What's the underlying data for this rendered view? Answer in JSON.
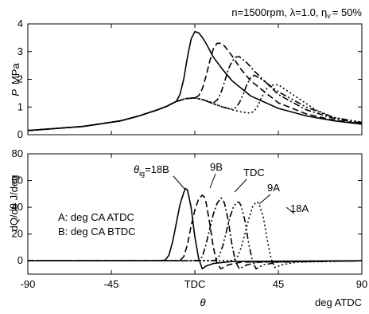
{
  "chart_data": [
    {
      "type": "line",
      "panel": "top",
      "condition_text": "n=1500rpm, λ=1.0, η",
      "condition_sub": "v",
      "condition_tail": "= 50%",
      "ylabel_sym": "P",
      "ylabel_unit": "MPa",
      "ylim": [
        0,
        4
      ],
      "yticks": [
        "0",
        "1",
        "2",
        "3",
        "4"
      ],
      "xlim": [
        -90,
        90
      ],
      "series": [
        {
          "style": "solid",
          "x": [
            -90,
            -60,
            -40,
            -30,
            -20,
            -15,
            -10,
            -8,
            -6,
            -4,
            -2,
            0,
            2,
            4,
            6,
            8,
            10,
            15,
            20,
            30,
            45,
            60,
            75,
            90
          ],
          "y": [
            0.15,
            0.3,
            0.5,
            0.68,
            0.9,
            1.03,
            1.2,
            1.45,
            2.0,
            2.8,
            3.45,
            3.72,
            3.68,
            3.52,
            3.3,
            3.05,
            2.8,
            2.35,
            1.95,
            1.4,
            0.95,
            0.68,
            0.5,
            0.38
          ]
        },
        {
          "style": "dash",
          "x": [
            -90,
            -60,
            -40,
            -30,
            -20,
            -15,
            -10,
            -5,
            0,
            2,
            4,
            6,
            8,
            10,
            12,
            14,
            16,
            20,
            25,
            30,
            45,
            60,
            75,
            90
          ],
          "y": [
            0.15,
            0.3,
            0.5,
            0.68,
            0.9,
            1.03,
            1.2,
            1.3,
            1.33,
            1.4,
            1.65,
            2.1,
            2.65,
            3.1,
            3.3,
            3.3,
            3.2,
            2.85,
            2.35,
            1.95,
            1.15,
            0.75,
            0.52,
            0.4
          ]
        },
        {
          "style": "dashdot",
          "x": [
            -90,
            -60,
            -40,
            -30,
            -20,
            -15,
            -10,
            -5,
            0,
            5,
            10,
            12,
            14,
            16,
            18,
            20,
            22,
            24,
            28,
            32,
            45,
            60,
            75,
            90
          ],
          "y": [
            0.15,
            0.3,
            0.5,
            0.68,
            0.9,
            1.03,
            1.2,
            1.3,
            1.33,
            1.25,
            1.15,
            1.25,
            1.5,
            1.9,
            2.35,
            2.65,
            2.8,
            2.82,
            2.6,
            2.3,
            1.45,
            0.9,
            0.58,
            0.42
          ]
        },
        {
          "style": "dashdotdot",
          "x": [
            -90,
            -60,
            -40,
            -30,
            -20,
            -15,
            -10,
            -5,
            0,
            5,
            10,
            15,
            20,
            22,
            24,
            26,
            28,
            30,
            32,
            36,
            45,
            60,
            75,
            90
          ],
          "y": [
            0.15,
            0.3,
            0.5,
            0.68,
            0.9,
            1.03,
            1.2,
            1.3,
            1.33,
            1.25,
            1.12,
            1.0,
            0.92,
            0.98,
            1.15,
            1.45,
            1.8,
            2.05,
            2.15,
            2.0,
            1.55,
            1.0,
            0.62,
            0.44
          ]
        },
        {
          "style": "dot",
          "x": [
            -90,
            -60,
            -40,
            -30,
            -20,
            -15,
            -10,
            -5,
            0,
            5,
            10,
            15,
            20,
            25,
            30,
            32,
            34,
            36,
            38,
            40,
            45,
            55,
            65,
            75,
            90
          ],
          "y": [
            0.15,
            0.3,
            0.5,
            0.68,
            0.9,
            1.03,
            1.2,
            1.3,
            1.33,
            1.25,
            1.12,
            1.0,
            0.9,
            0.82,
            0.78,
            0.85,
            1.05,
            1.35,
            1.6,
            1.78,
            1.8,
            1.35,
            0.9,
            0.62,
            0.45
          ]
        }
      ]
    },
    {
      "type": "line",
      "panel": "bottom",
      "ylabel": "dQ/dθ  J/deg",
      "ylim": [
        -10,
        80
      ],
      "yticks": [
        "0",
        "20",
        "40",
        "60",
        "80"
      ],
      "xlim": [
        -90,
        90
      ],
      "xticks": [
        "-90",
        "-45",
        "TDC",
        "45",
        "90"
      ],
      "xlabel_sym": "θ",
      "xunit": "deg ATDC",
      "series_labels": [
        "θig=18B",
        "9B",
        "TDC",
        "9A",
        "18A"
      ],
      "series_label_main": "θ",
      "series_label_sub": "ig",
      "series_label_tail": "=18B",
      "legend_lines": [
        "A: deg CA ATDC",
        "B: deg CA BTDC"
      ],
      "series": [
        {
          "style": "solid",
          "x": [
            -90,
            -20,
            -16,
            -14,
            -12,
            -10,
            -8,
            -6,
            -5,
            -4,
            -2,
            0,
            2,
            4,
            6,
            10,
            20,
            90
          ],
          "y": [
            0,
            0,
            0.5,
            4,
            14,
            28,
            42,
            51,
            54,
            53,
            40,
            18,
            2,
            -6,
            -4,
            -2,
            -0.5,
            0
          ]
        },
        {
          "style": "dash",
          "x": [
            -90,
            -12,
            -8,
            -6,
            -4,
            -2,
            0,
            2,
            4,
            5,
            6,
            8,
            10,
            12,
            14,
            18,
            25,
            90
          ],
          "y": [
            0,
            0,
            0.3,
            3,
            12,
            26,
            38,
            46,
            49,
            48,
            44,
            28,
            10,
            -2,
            -6,
            -3,
            -1,
            0
          ]
        },
        {
          "style": "dashdot",
          "x": [
            -90,
            -2,
            2,
            4,
            6,
            8,
            10,
            12,
            14,
            15,
            16,
            18,
            20,
            22,
            24,
            28,
            35,
            90
          ],
          "y": [
            0,
            0,
            0.3,
            3,
            12,
            24,
            35,
            43,
            47,
            46,
            43,
            30,
            12,
            -1,
            -6,
            -3,
            -1,
            0
          ]
        },
        {
          "style": "dashdotdot",
          "x": [
            -90,
            8,
            11,
            13,
            15,
            17,
            19,
            21,
            23,
            24,
            25,
            27,
            29,
            31,
            33,
            37,
            45,
            90
          ],
          "y": [
            0,
            0,
            0.3,
            3,
            11,
            22,
            33,
            41,
            44,
            43.5,
            41,
            30,
            13,
            0,
            -6,
            -3,
            -1,
            0
          ]
        },
        {
          "style": "dot",
          "x": [
            -90,
            18,
            21,
            23,
            25,
            27,
            29,
            31,
            33,
            34,
            35,
            37,
            39,
            41,
            43,
            47,
            55,
            90
          ],
          "y": [
            0,
            0,
            0.3,
            3,
            10,
            20,
            31,
            40,
            44,
            43.5,
            41,
            32,
            16,
            2,
            -5,
            -3,
            -1,
            0
          ]
        }
      ]
    }
  ]
}
